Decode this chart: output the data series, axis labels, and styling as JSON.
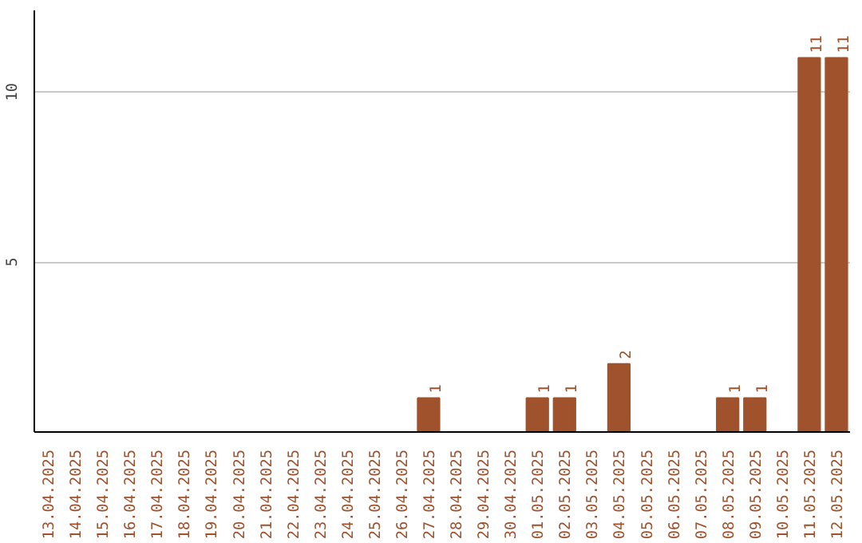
{
  "chart_data": {
    "type": "bar",
    "categories": [
      "13.04.2025",
      "14.04.2025",
      "15.04.2025",
      "16.04.2025",
      "17.04.2025",
      "18.04.2025",
      "19.04.2025",
      "20.04.2025",
      "21.04.2025",
      "22.04.2025",
      "23.04.2025",
      "24.04.2025",
      "25.04.2025",
      "26.04.2025",
      "27.04.2025",
      "28.04.2025",
      "29.04.2025",
      "30.04.2025",
      "01.05.2025",
      "02.05.2025",
      "03.05.2025",
      "04.05.2025",
      "05.05.2025",
      "06.05.2025",
      "07.05.2025",
      "08.05.2025",
      "09.05.2025",
      "10.05.2025",
      "11.05.2025",
      "12.05.2025"
    ],
    "values": [
      0,
      0,
      0,
      0,
      0,
      0,
      0,
      0,
      0,
      0,
      0,
      0,
      0,
      0,
      1,
      0,
      0,
      0,
      1,
      1,
      0,
      2,
      0,
      0,
      0,
      1,
      1,
      0,
      11,
      11
    ],
    "value_labels": [
      null,
      null,
      null,
      null,
      null,
      null,
      null,
      null,
      null,
      null,
      null,
      null,
      null,
      null,
      "1",
      null,
      null,
      null,
      "1",
      "1",
      null,
      "2",
      null,
      null,
      null,
      "1",
      "1",
      null,
      "11",
      "11"
    ],
    "color": "#a0522d",
    "ylim": [
      0,
      12.4
    ],
    "yticks": [
      5,
      10
    ],
    "grid": "y"
  }
}
